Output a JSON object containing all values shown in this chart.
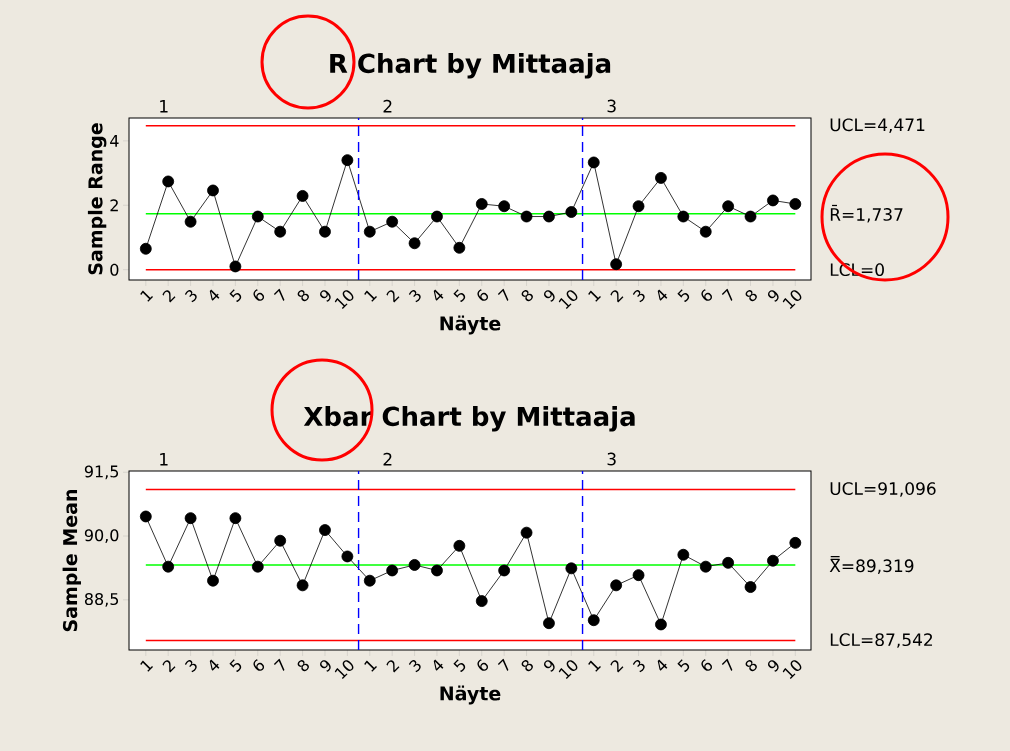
{
  "chart_data": [
    {
      "type": "line",
      "title": "R Chart by Mittaaja",
      "xlabel": "Näyte",
      "ylabel": "Sample Range",
      "categories": [
        "1",
        "2",
        "3",
        "4",
        "5",
        "6",
        "7",
        "8",
        "9",
        "10",
        "1",
        "2",
        "3",
        "4",
        "5",
        "6",
        "7",
        "8",
        "9",
        "10",
        "1",
        "2",
        "3",
        "4",
        "5",
        "6",
        "7",
        "8",
        "9",
        "10"
      ],
      "series": [
        {
          "color": "#000000",
          "values": [
            0.65,
            2.74,
            1.49,
            2.46,
            0.1,
            1.65,
            1.18,
            2.29,
            1.18,
            3.4,
            1.18,
            1.49,
            0.82,
            1.65,
            0.68,
            2.04,
            1.97,
            1.65,
            1.65,
            1.79,
            3.33,
            0.17,
            1.97,
            2.85,
            1.65,
            1.18,
            1.97,
            1.65,
            2.15,
            2.04
          ]
        }
      ],
      "marker": "circle",
      "ylim": [
        -0.32,
        4.71
      ],
      "yticks": [
        0,
        2,
        4
      ],
      "ref_lines": [
        {
          "axis": "y",
          "value": 4.471,
          "label": "UCL=4,471",
          "color": "#ff0000"
        },
        {
          "axis": "y",
          "value": 1.737,
          "label": "R̄=1,737",
          "color": "#00ff00"
        },
        {
          "axis": "y",
          "value": 0,
          "label": "LCL=0",
          "color": "#ff0000"
        }
      ],
      "annotations": [
        "1",
        "2",
        "3"
      ]
    },
    {
      "type": "line",
      "title": "Xbar Chart by Mittaaja",
      "xlabel": "Näyte",
      "ylabel": "Sample Mean",
      "categories": [
        "1",
        "2",
        "3",
        "4",
        "5",
        "6",
        "7",
        "8",
        "9",
        "10",
        "1",
        "2",
        "3",
        "4",
        "5",
        "6",
        "7",
        "8",
        "9",
        "10",
        "1",
        "2",
        "3",
        "4",
        "5",
        "6",
        "7",
        "8",
        "9",
        "10"
      ],
      "series": [
        {
          "color": "#000000",
          "values": [
            90.46,
            89.28,
            90.42,
            88.95,
            90.42,
            89.28,
            89.89,
            88.84,
            90.14,
            89.52,
            88.95,
            89.19,
            89.32,
            89.19,
            89.77,
            88.47,
            89.19,
            90.08,
            87.95,
            89.24,
            88.02,
            88.84,
            89.08,
            87.92,
            89.56,
            89.28,
            89.37,
            88.8,
            89.42,
            89.84
          ]
        }
      ],
      "marker": "circle",
      "ylim": [
        87.32,
        91.53
      ],
      "yticks": [
        {
          "value": 88.5,
          "label": "88,5"
        },
        {
          "value": 90,
          "label": "90,0"
        },
        {
          "value": 91.5,
          "label": "91,5"
        }
      ],
      "ref_lines": [
        {
          "axis": "y",
          "value": 91.096,
          "label": "UCL=91,096",
          "color": "#ff0000"
        },
        {
          "axis": "y",
          "value": 89.319,
          "label": "X̿=89,319",
          "color": "#00ff00"
        },
        {
          "axis": "y",
          "value": 87.542,
          "label": "LCL=87,542",
          "color": "#ff0000"
        }
      ],
      "annotations": [
        "1",
        "2",
        "3"
      ]
    }
  ]
}
